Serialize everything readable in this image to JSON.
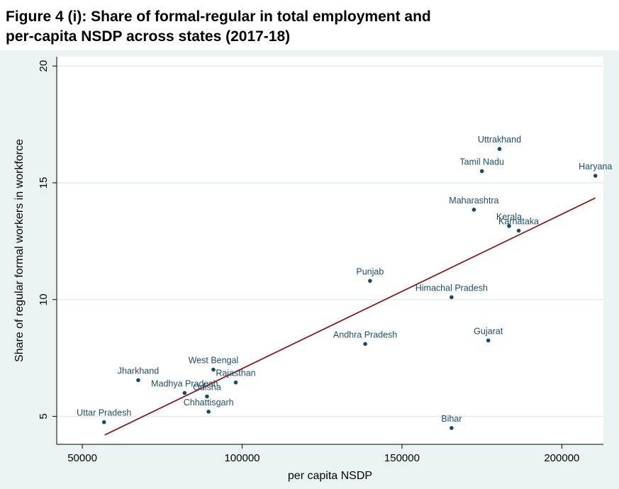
{
  "figure": {
    "title_line1": "Figure 4 (i): Share of formal-regular in total employment and",
    "title_line2": "per-capita NSDP across states (2017-18)"
  },
  "colors": {
    "outer_bg": "#eaf2f3",
    "plot_bg": "#ffffff",
    "point": "#1a4a66",
    "point_label": "#1f4e63",
    "fit_line": "#8b1c1c",
    "grid": "#e3ecee"
  },
  "chart_data": {
    "type": "scatter",
    "title": "Figure 4 (i): Share of formal-regular in total employment and per-capita NSDP across states (2017-18)",
    "xlabel": "per capita NSDP",
    "ylabel": "Share of regular formal workers in workforce",
    "xlim": [
      42000,
      213000
    ],
    "ylim": [
      3.8,
      20.4
    ],
    "x_ticks": [
      50000,
      100000,
      150000,
      200000
    ],
    "y_ticks": [
      5,
      10,
      15,
      20
    ],
    "grid": "horizontal",
    "points": [
      {
        "label": "Uttar Pradesh",
        "x": 56800,
        "y": 4.75
      },
      {
        "label": "Jharkhand",
        "x": 67500,
        "y": 6.55
      },
      {
        "label": "Madhya Pradesh",
        "x": 82000,
        "y": 6.0
      },
      {
        "label": "West Bengal",
        "x": 91000,
        "y": 7.0
      },
      {
        "label": "Odisha",
        "x": 89000,
        "y": 5.85
      },
      {
        "label": "Chhattisgarh",
        "x": 89500,
        "y": 5.2
      },
      {
        "label": "Rajasthan",
        "x": 98000,
        "y": 6.45
      },
      {
        "label": "Andhra Pradesh",
        "x": 138500,
        "y": 8.1
      },
      {
        "label": "Punjab",
        "x": 140000,
        "y": 10.8
      },
      {
        "label": "Himachal Pradesh",
        "x": 165500,
        "y": 10.1
      },
      {
        "label": "Bihar",
        "x": 165500,
        "y": 4.5
      },
      {
        "label": "Maharashtra",
        "x": 172500,
        "y": 13.85
      },
      {
        "label": "Tamil Nadu",
        "x": 175000,
        "y": 15.5
      },
      {
        "label": "Gujarat",
        "x": 177000,
        "y": 8.25
      },
      {
        "label": "Uttrakhand",
        "x": 180500,
        "y": 16.45
      },
      {
        "label": "Kerala",
        "x": 183500,
        "y": 13.15
      },
      {
        "label": "Karnataka",
        "x": 186500,
        "y": 12.95
      },
      {
        "label": "Haryana",
        "x": 210500,
        "y": 15.3
      }
    ],
    "fit_line": {
      "x": [
        57000,
        210500
      ],
      "y": [
        4.2,
        14.35
      ]
    }
  }
}
